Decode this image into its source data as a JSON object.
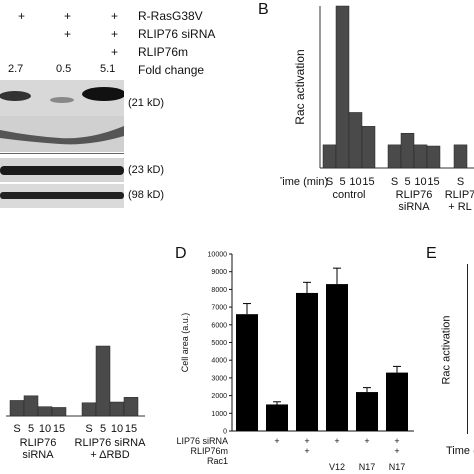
{
  "panelA": {
    "conditions": [
      {
        "label": "R-RasG38V",
        "marks": [
          "+",
          "+",
          "+"
        ]
      },
      {
        "label": "RLIP76 siRNA",
        "marks": [
          "",
          "+",
          "+"
        ]
      },
      {
        "label": "RLIP76m",
        "marks": [
          "",
          "",
          "+"
        ]
      }
    ],
    "fold_values": [
      "2.7",
      "0.5",
      "5.1"
    ],
    "fold_label": "Fold change",
    "blot_labels": [
      "(21 kD)",
      "(23 kD)",
      "(98 kD)"
    ]
  },
  "panelB": {
    "letter": "B",
    "ylabel": "Rac activation",
    "time_label": "Time (min)",
    "groups": [
      "control",
      "RLIP76\nsiRNA",
      "RLIP7\n+ RL"
    ]
  },
  "panelC": {
    "groups": [
      "RLIP76\nsiRNA",
      "RLIP76 siRNA\n+ ΔRBD"
    ]
  },
  "panelD": {
    "letter": "D",
    "ylabel": "Cell area (a.u.)",
    "row_labels": [
      "RLIP76 siRNA",
      "RLIP76m",
      "Rac1"
    ],
    "rows": [
      [
        "",
        "+",
        "+",
        "+",
        "+",
        "+"
      ],
      [
        "",
        "",
        "+",
        "",
        "",
        "+"
      ],
      [
        "",
        "",
        "",
        "V12",
        "N17",
        "N17"
      ]
    ]
  },
  "panelE": {
    "letter": "E",
    "ylabel": "Rac activation",
    "time_label": "Time (m"
  },
  "chart_data": [
    {
      "type": "bar",
      "panel": "B",
      "title": "",
      "xlabel": "Time (min)",
      "ylabel": "Rac activation",
      "ylim": [
        0,
        7
      ],
      "categories": [
        "S",
        "5",
        "10",
        "15",
        "S",
        "5",
        "10",
        "15",
        "S"
      ],
      "group_labels": [
        "control",
        "RLIP76 siRNA",
        "RLIP7 + RL"
      ],
      "values": [
        1.0,
        7.0,
        2.4,
        1.8,
        1.0,
        1.5,
        1.0,
        0.95,
        1.0
      ]
    },
    {
      "type": "bar",
      "panel": "C",
      "title": "",
      "categories": [
        "S",
        "5",
        "10",
        "15",
        "S",
        "5",
        "10",
        "15"
      ],
      "group_labels": [
        "RLIP76 siRNA",
        "RLIP76 siRNA + ΔRBD"
      ],
      "values": [
        1.0,
        1.3,
        0.6,
        0.55,
        0.85,
        4.5,
        0.9,
        1.2
      ]
    },
    {
      "type": "bar",
      "panel": "D",
      "title": "",
      "ylabel": "Cell area (a.u.)",
      "ylim": [
        0,
        10000
      ],
      "yticks": [
        "0",
        "1000",
        "2000",
        "3000",
        "4000",
        "5000",
        "6000",
        "7000",
        "8000",
        "9000",
        "10000"
      ],
      "categories": [
        "control",
        "RLIP76 siRNA",
        "RLIP76 siRNA + RLIP76m",
        "RLIP76 siRNA + V12",
        "RLIP76 siRNA + N17",
        "RLIP76 siRNA + RLIP76m + N17"
      ],
      "values": [
        6600,
        1500,
        7800,
        8300,
        2200,
        3300
      ],
      "errors": [
        600,
        150,
        600,
        900,
        250,
        350
      ]
    }
  ]
}
